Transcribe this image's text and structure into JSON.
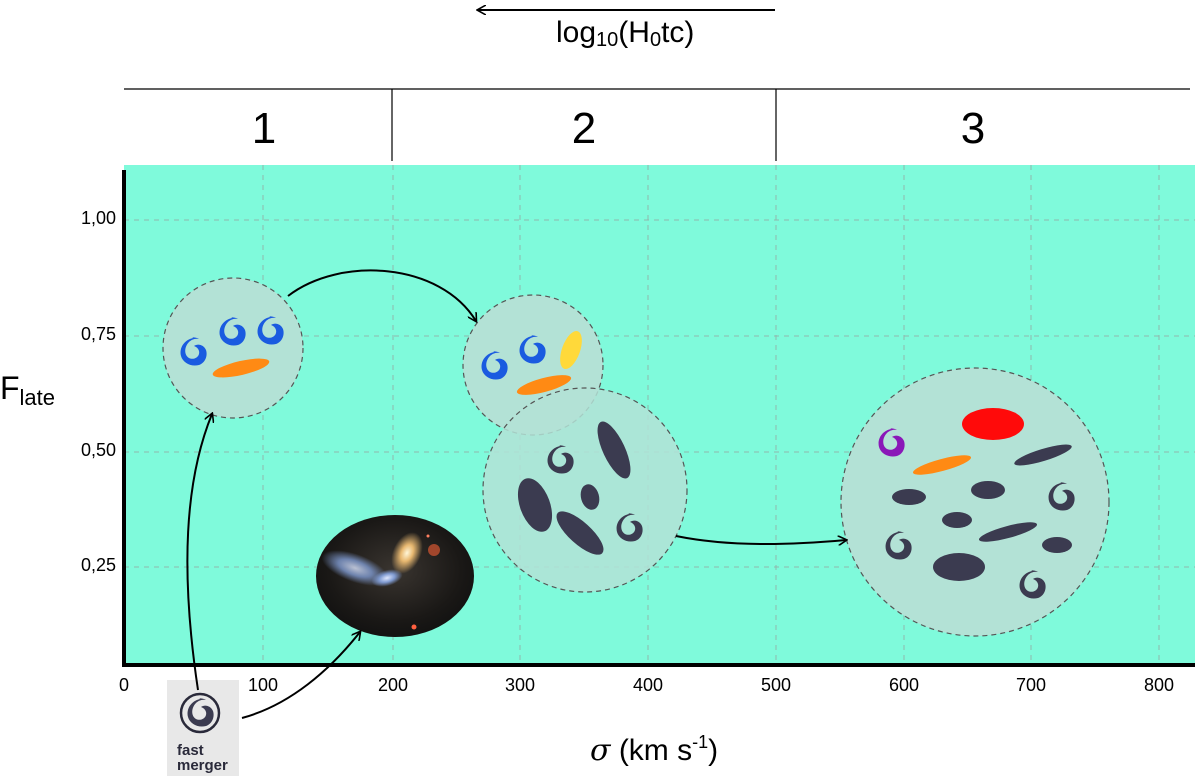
{
  "top_axis": {
    "label_main": "log",
    "label_sub": "10",
    "label_rest": "(H",
    "label_sub2": "0",
    "label_end": "tc)"
  },
  "regions": [
    "1",
    "2",
    "3"
  ],
  "y_axis": {
    "label_main": "F",
    "label_sub": "late",
    "ticks": [
      "1,00",
      "0,75",
      "0,50",
      "0,25"
    ]
  },
  "x_axis": {
    "label_symbol": "σ",
    "label_rest": " (km s",
    "label_sup": "-1",
    "label_end": ")",
    "ticks": [
      "0",
      "100",
      "200",
      "300",
      "400",
      "500",
      "600",
      "700",
      "800"
    ]
  },
  "merger_label": {
    "line1": "fast",
    "line2": "merger"
  },
  "colors": {
    "plot_background": "#7ffadb",
    "circle_fill": "#b3e2d6",
    "spiral_blue": "#1a5be0",
    "elliptical_dark": "#3b3b50",
    "orange": "#ff8a14",
    "yellow": "#ffd93a",
    "red": "#ff0a0a",
    "purple": "#8a18b8"
  },
  "icons": [
    "spiral-galaxy-icon",
    "elliptical-galaxy-icon",
    "merger-photo-icon",
    "fast-merger-icon",
    "arrow-icon"
  ]
}
